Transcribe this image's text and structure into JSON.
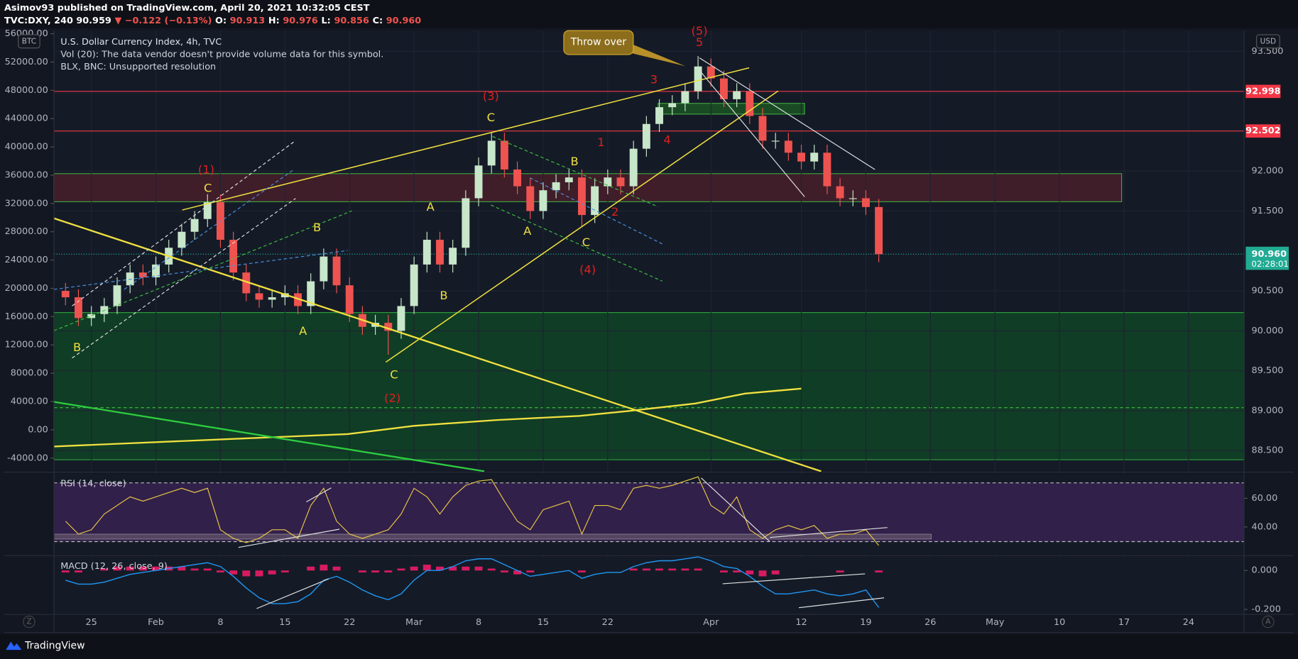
{
  "header": {
    "line1": "Asimov93 published on TradingView.com, April 20, 2021 10:32:05 CEST",
    "quote": [
      {
        "text": "TVC:DXY, 240 90.959",
        "color": "#ffffff"
      },
      {
        "text": "▼ −0.122 (−0.13%)",
        "color": "#ef5350"
      },
      {
        "text": "O:",
        "color": "#ffffff"
      },
      {
        "text": "90.913",
        "color": "#ef5350"
      },
      {
        "text": "H:",
        "color": "#ffffff"
      },
      {
        "text": "90.976",
        "color": "#ef5350"
      },
      {
        "text": "L:",
        "color": "#ffffff"
      },
      {
        "text": "90.856",
        "color": "#ef5350"
      },
      {
        "text": "C:",
        "color": "#ffffff"
      },
      {
        "text": "90.960",
        "color": "#ef5350"
      }
    ]
  },
  "ui": {
    "left_button": "Z",
    "right_button": "A",
    "brand": "TradingView"
  },
  "chart_data": {
    "type": "candlestick",
    "title": "U.S. Dollar Currency Index, 4h, TVC",
    "legend_lines": [
      "Vol (20): The data vendor doesn't provide volume data for this symbol.",
      "BLX, BNC: Unsupported resolution"
    ],
    "annotations": [
      "Throw over",
      "(1)",
      "C",
      "B",
      "B",
      "A",
      "C",
      "(2)",
      "A",
      "B",
      "(3)",
      "C",
      "A",
      "B",
      "C",
      "(4)",
      "1",
      "2",
      "3",
      "4",
      "(5)",
      "5"
    ],
    "x": [
      -2,
      -1,
      0,
      1,
      2,
      3,
      4,
      5,
      6,
      7,
      8,
      9,
      10,
      11,
      12,
      13,
      14,
      15,
      16,
      17,
      18,
      19,
      20,
      21,
      22,
      23,
      24,
      25,
      26,
      27,
      28,
      29,
      30,
      31,
      32,
      33,
      34,
      35,
      36,
      37,
      38,
      39,
      40,
      41,
      42,
      43,
      44,
      45,
      46,
      47,
      48,
      49,
      50,
      51,
      52,
      53,
      54,
      55,
      56,
      57,
      58,
      59,
      60,
      61
    ],
    "open": [
      90.5,
      90.42,
      90.16,
      90.21,
      90.31,
      90.57,
      90.73,
      90.67,
      90.83,
      91.04,
      91.24,
      91.4,
      91.61,
      91.14,
      90.73,
      90.47,
      90.39,
      90.42,
      90.47,
      90.31,
      90.62,
      90.93,
      90.57,
      90.21,
      90.05,
      90.1,
      90.0,
      90.31,
      90.83,
      91.14,
      90.83,
      91.04,
      91.66,
      92.07,
      92.38,
      92.02,
      91.81,
      91.5,
      91.76,
      91.86,
      91.92,
      91.45,
      91.81,
      91.92,
      91.81,
      92.28,
      92.59,
      92.8,
      92.85,
      93.0,
      93.31,
      93.16,
      92.9,
      93.0,
      92.69,
      92.38,
      92.38,
      92.23,
      92.12,
      92.23,
      91.81,
      91.66,
      91.66,
      91.55
    ],
    "high": [
      90.6,
      90.52,
      90.31,
      90.41,
      90.67,
      90.83,
      90.83,
      90.93,
      91.14,
      91.34,
      91.5,
      91.71,
      91.71,
      91.24,
      90.83,
      90.57,
      90.52,
      90.57,
      90.57,
      90.72,
      91.03,
      91.03,
      90.67,
      90.31,
      90.2,
      90.2,
      90.41,
      90.93,
      91.24,
      91.24,
      91.14,
      91.76,
      92.17,
      92.49,
      92.48,
      92.12,
      91.91,
      91.86,
      91.96,
      92.02,
      92.02,
      91.91,
      92.02,
      92.02,
      92.38,
      92.69,
      92.9,
      92.95,
      93.1,
      93.44,
      93.41,
      93.26,
      93.1,
      93.1,
      92.79,
      92.48,
      92.48,
      92.33,
      92.33,
      92.33,
      91.91,
      91.76,
      91.76,
      91.65
    ],
    "low": [
      90.32,
      90.06,
      90.06,
      90.11,
      90.21,
      90.47,
      90.57,
      90.57,
      90.73,
      90.94,
      91.14,
      91.3,
      91.04,
      90.63,
      90.37,
      90.29,
      90.29,
      90.32,
      90.21,
      90.21,
      90.52,
      90.47,
      90.11,
      89.95,
      89.95,
      89.7,
      89.9,
      90.21,
      90.73,
      90.73,
      90.73,
      90.94,
      91.56,
      91.97,
      91.92,
      91.71,
      91.4,
      91.4,
      91.66,
      91.76,
      91.3,
      91.35,
      91.71,
      91.71,
      91.71,
      92.18,
      92.49,
      92.7,
      92.75,
      92.9,
      93.06,
      92.8,
      92.8,
      92.59,
      92.28,
      92.28,
      92.13,
      92.02,
      92.02,
      91.71,
      91.56,
      91.56,
      91.45,
      90.86
    ],
    "close": [
      90.42,
      90.16,
      90.21,
      90.31,
      90.57,
      90.73,
      90.67,
      90.83,
      91.04,
      91.24,
      91.4,
      91.61,
      91.14,
      90.73,
      90.47,
      90.39,
      90.42,
      90.47,
      90.31,
      90.62,
      90.93,
      90.57,
      90.21,
      90.05,
      90.1,
      90.0,
      90.31,
      90.83,
      91.14,
      90.83,
      91.04,
      91.66,
      92.07,
      92.38,
      92.02,
      91.81,
      91.5,
      91.76,
      91.86,
      91.92,
      91.45,
      91.81,
      91.92,
      91.81,
      92.28,
      92.59,
      92.8,
      92.85,
      93.0,
      93.31,
      93.16,
      92.9,
      93.0,
      92.69,
      92.38,
      92.38,
      92.23,
      92.12,
      92.23,
      91.81,
      91.66,
      91.66,
      91.55,
      90.96
    ],
    "up_color": "#c8e6c9",
    "down_color": "#ef5350",
    "xlim": [
      -2.9,
      89.3
    ],
    "xticks": [
      {
        "value": 0,
        "label": "25"
      },
      {
        "value": 5,
        "label": "Feb"
      },
      {
        "value": 10,
        "label": "8"
      },
      {
        "value": 15,
        "label": "15"
      },
      {
        "value": 20,
        "label": "22"
      },
      {
        "value": 25,
        "label": "Mar"
      },
      {
        "value": 30,
        "label": "8"
      },
      {
        "value": 35,
        "label": "15"
      },
      {
        "value": 40,
        "label": "22"
      },
      {
        "value": 48,
        "label": "Apr"
      },
      {
        "value": 55,
        "label": "12"
      },
      {
        "value": 60,
        "label": "19"
      },
      {
        "value": 65,
        "label": "26"
      },
      {
        "value": 70,
        "label": "May"
      },
      {
        "value": 75,
        "label": "10"
      },
      {
        "value": 80,
        "label": "17"
      },
      {
        "value": 85,
        "label": "24"
      }
    ],
    "y_unit": "USD",
    "ylim": [
      88.241,
      93.759
    ],
    "yticks": [
      {
        "value": 93.5,
        "label": "93.500"
      },
      {
        "value": 92,
        "label": "92.000"
      },
      {
        "value": 91.5,
        "label": "91.500"
      },
      {
        "value": 90.5,
        "label": "90.500"
      },
      {
        "value": 90,
        "label": "90.000"
      },
      {
        "value": 89.5,
        "label": "89.500"
      },
      {
        "value": 89,
        "label": "89.000"
      },
      {
        "value": 88.5,
        "label": "88.500"
      }
    ],
    "y2_unit": "BTC",
    "y2lim": [
      -5870,
      56442
    ],
    "y2ticks": [
      {
        "value": 56000,
        "label": "56000.00"
      },
      {
        "value": 52000,
        "label": "52000.00"
      },
      {
        "value": 48000,
        "label": "48000.00"
      },
      {
        "value": 44000,
        "label": "44000.00"
      },
      {
        "value": 40000,
        "label": "40000.00"
      },
      {
        "value": 36000,
        "label": "36000.00"
      },
      {
        "value": 32000,
        "label": "32000.00"
      },
      {
        "value": 28000,
        "label": "28000.00"
      },
      {
        "value": 24000,
        "label": "24000.00"
      },
      {
        "value": 20000,
        "label": "20000.00"
      },
      {
        "value": 16000,
        "label": "16000.00"
      },
      {
        "value": 12000,
        "label": "12000.00"
      },
      {
        "value": 8000,
        "label": "8000.00"
      },
      {
        "value": 4000,
        "label": "4000.00"
      },
      {
        "value": 0,
        "label": "0.00"
      },
      {
        "value": -4000,
        "label": "-4000.00"
      }
    ],
    "grid": true,
    "price_lines": [
      {
        "value": 92.998,
        "label": "92.998",
        "color": "#f23645"
      },
      {
        "value": 92.502,
        "label": "92.502",
        "color": "#f23645"
      }
    ],
    "last_price": {
      "value": 90.96,
      "label": "90.960",
      "countdown": "02:28:01",
      "color": "#22ab94"
    },
    "panes": [
      {
        "type": "line",
        "title": "RSI (14, close)",
        "color": "#e8c547",
        "ylim": [
          21.1,
          77.1
        ],
        "yticks": [
          {
            "value": 60,
            "label": "60.00"
          },
          {
            "value": 40,
            "label": "40.00"
          }
        ],
        "values": [
          44,
          35,
          38,
          49,
          55,
          61,
          58,
          61,
          64,
          67,
          64,
          67,
          38,
          32,
          29,
          32,
          38,
          38,
          32,
          55,
          67,
          44,
          35,
          32,
          35,
          38,
          49,
          67,
          61,
          49,
          61,
          69,
          72,
          73,
          58,
          44,
          38,
          52,
          55,
          58,
          35,
          55,
          55,
          52,
          67,
          69,
          67,
          69,
          72,
          75,
          55,
          49,
          61,
          38,
          32,
          38,
          41,
          38,
          41,
          32,
          35,
          35,
          38,
          27
        ]
      },
      {
        "type": "macd",
        "title": "MACD (12, 26, close, 9)",
        "color": "#2196f3",
        "histogram_color": "#d81b60",
        "ylim": [
          -0.221,
          0.072
        ],
        "yticks": [
          {
            "value": 0,
            "label": "0.000"
          },
          {
            "value": -0.2,
            "label": "-0.200"
          }
        ],
        "values": [
          -0.05,
          -0.07,
          -0.07,
          -0.06,
          -0.04,
          -0.02,
          -0.01,
          0.0,
          0.01,
          0.02,
          0.03,
          0.04,
          0.02,
          -0.03,
          -0.09,
          -0.14,
          -0.17,
          -0.17,
          -0.16,
          -0.12,
          -0.05,
          -0.03,
          -0.06,
          -0.1,
          -0.13,
          -0.15,
          -0.12,
          -0.05,
          0.0,
          0.0,
          0.02,
          0.05,
          0.06,
          0.06,
          0.03,
          0.0,
          -0.03,
          -0.02,
          -0.01,
          0.0,
          -0.04,
          -0.02,
          -0.01,
          -0.01,
          0.02,
          0.04,
          0.05,
          0.05,
          0.06,
          0.07,
          0.05,
          0.02,
          0.01,
          -0.03,
          -0.08,
          -0.12,
          -0.12,
          -0.11,
          -0.1,
          -0.12,
          -0.13,
          -0.12,
          -0.1,
          -0.19
        ],
        "histogram": [
          -0.01,
          -0.01,
          0.0,
          0.01,
          0.02,
          0.02,
          0.02,
          0.02,
          0.02,
          0.02,
          0.01,
          0.01,
          -0.01,
          -0.02,
          -0.03,
          -0.03,
          -0.02,
          -0.01,
          0.0,
          0.02,
          0.03,
          0.02,
          0.0,
          -0.01,
          -0.01,
          -0.01,
          0.01,
          0.02,
          0.03,
          0.02,
          0.02,
          0.02,
          0.02,
          0.01,
          -0.01,
          -0.02,
          -0.01,
          0.0,
          0.0,
          0.0,
          -0.01,
          0.0,
          0.0,
          0.0,
          0.01,
          0.01,
          0.01,
          0.01,
          0.01,
          0.01,
          0.0,
          -0.01,
          -0.01,
          -0.02,
          -0.03,
          -0.02,
          0.0,
          0.0,
          0.0,
          0.0,
          -0.01,
          0.0,
          0.0,
          -0.01
        ]
      }
    ]
  }
}
